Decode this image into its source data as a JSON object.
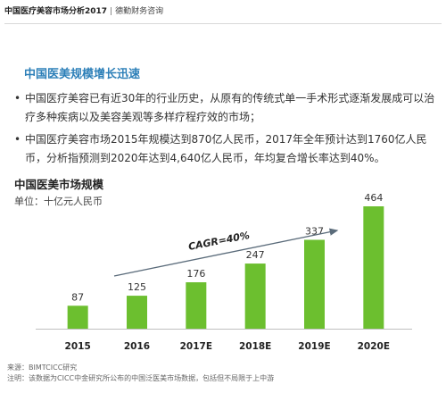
{
  "header": {
    "title": "中国医疗美容市场分析2017",
    "separator": "|",
    "org": "德勤财务咨询"
  },
  "section": {
    "title": "中国医美规模增长迅速",
    "bullets": [
      "中国医疗美容已有近30年的行业历史，从原有的传统式单一手术形式逐渐发展成可以治疗多种疾病以及美容美观等多样疗程疗效的市场；",
      "中国医疗美容市场2015年规模达到870亿人民币，2017年全年预计达到1760亿人民币，分析指预测到2020年达到4,640亿人民币，年均复合增长率达到40%。"
    ]
  },
  "chart_data": {
    "type": "bar",
    "title": "中国医美市场规模",
    "unit": "单位：十亿元人民币",
    "categories": [
      "2015",
      "2016",
      "2017E",
      "2018E",
      "2019E",
      "2020E"
    ],
    "values": [
      87,
      125,
      176,
      247,
      337,
      464
    ],
    "ylim": [
      0,
      500
    ],
    "grid": false,
    "bar_color": "#6cbf2f",
    "annotation": "CAGR=40%"
  },
  "footer": {
    "source": "来源：BIMTCICC研究",
    "note": "注明：该数据为CICC中金研究所公布的中国泛医美市场数据，包括但不局限于上中游"
  }
}
